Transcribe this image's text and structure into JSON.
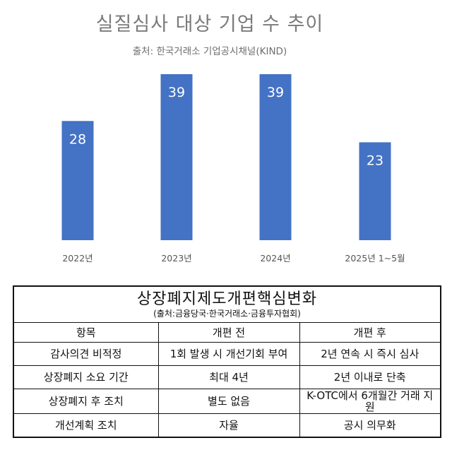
{
  "chart_data": {
    "type": "bar",
    "title": "실질심사 대상 기업 수 추이",
    "subtitle": "출처: 한국거래소 기업공시채널(KIND)",
    "categories": [
      "2022년",
      "2023년",
      "2024년",
      "2025년 1~5월"
    ],
    "values": [
      28,
      39,
      39,
      23
    ],
    "ylim": [
      0,
      39
    ],
    "grid": false,
    "colors": {
      "bar": "#4472c4",
      "label": "#ffffff"
    }
  },
  "table": {
    "title": "상장폐지제도개편핵심변화",
    "source": "(출처:금융당국·한국거래소·금융투자협회)",
    "headers": [
      "항목",
      "개편 전",
      "개편 후"
    ],
    "rows": [
      [
        "감사의견 비적정",
        "1회 발생 시 개선기회 부여",
        "2년 연속 시 즉시 심사"
      ],
      [
        "상장폐지 소요 기간",
        "최대 4년",
        "2년 이내로 단축"
      ],
      [
        "상장폐지 후 조치",
        "별도 없음",
        "K-OTC에서 6개월간 거래 지원"
      ],
      [
        "개선계획 조치",
        "자율",
        "공시 의무화"
      ]
    ]
  }
}
